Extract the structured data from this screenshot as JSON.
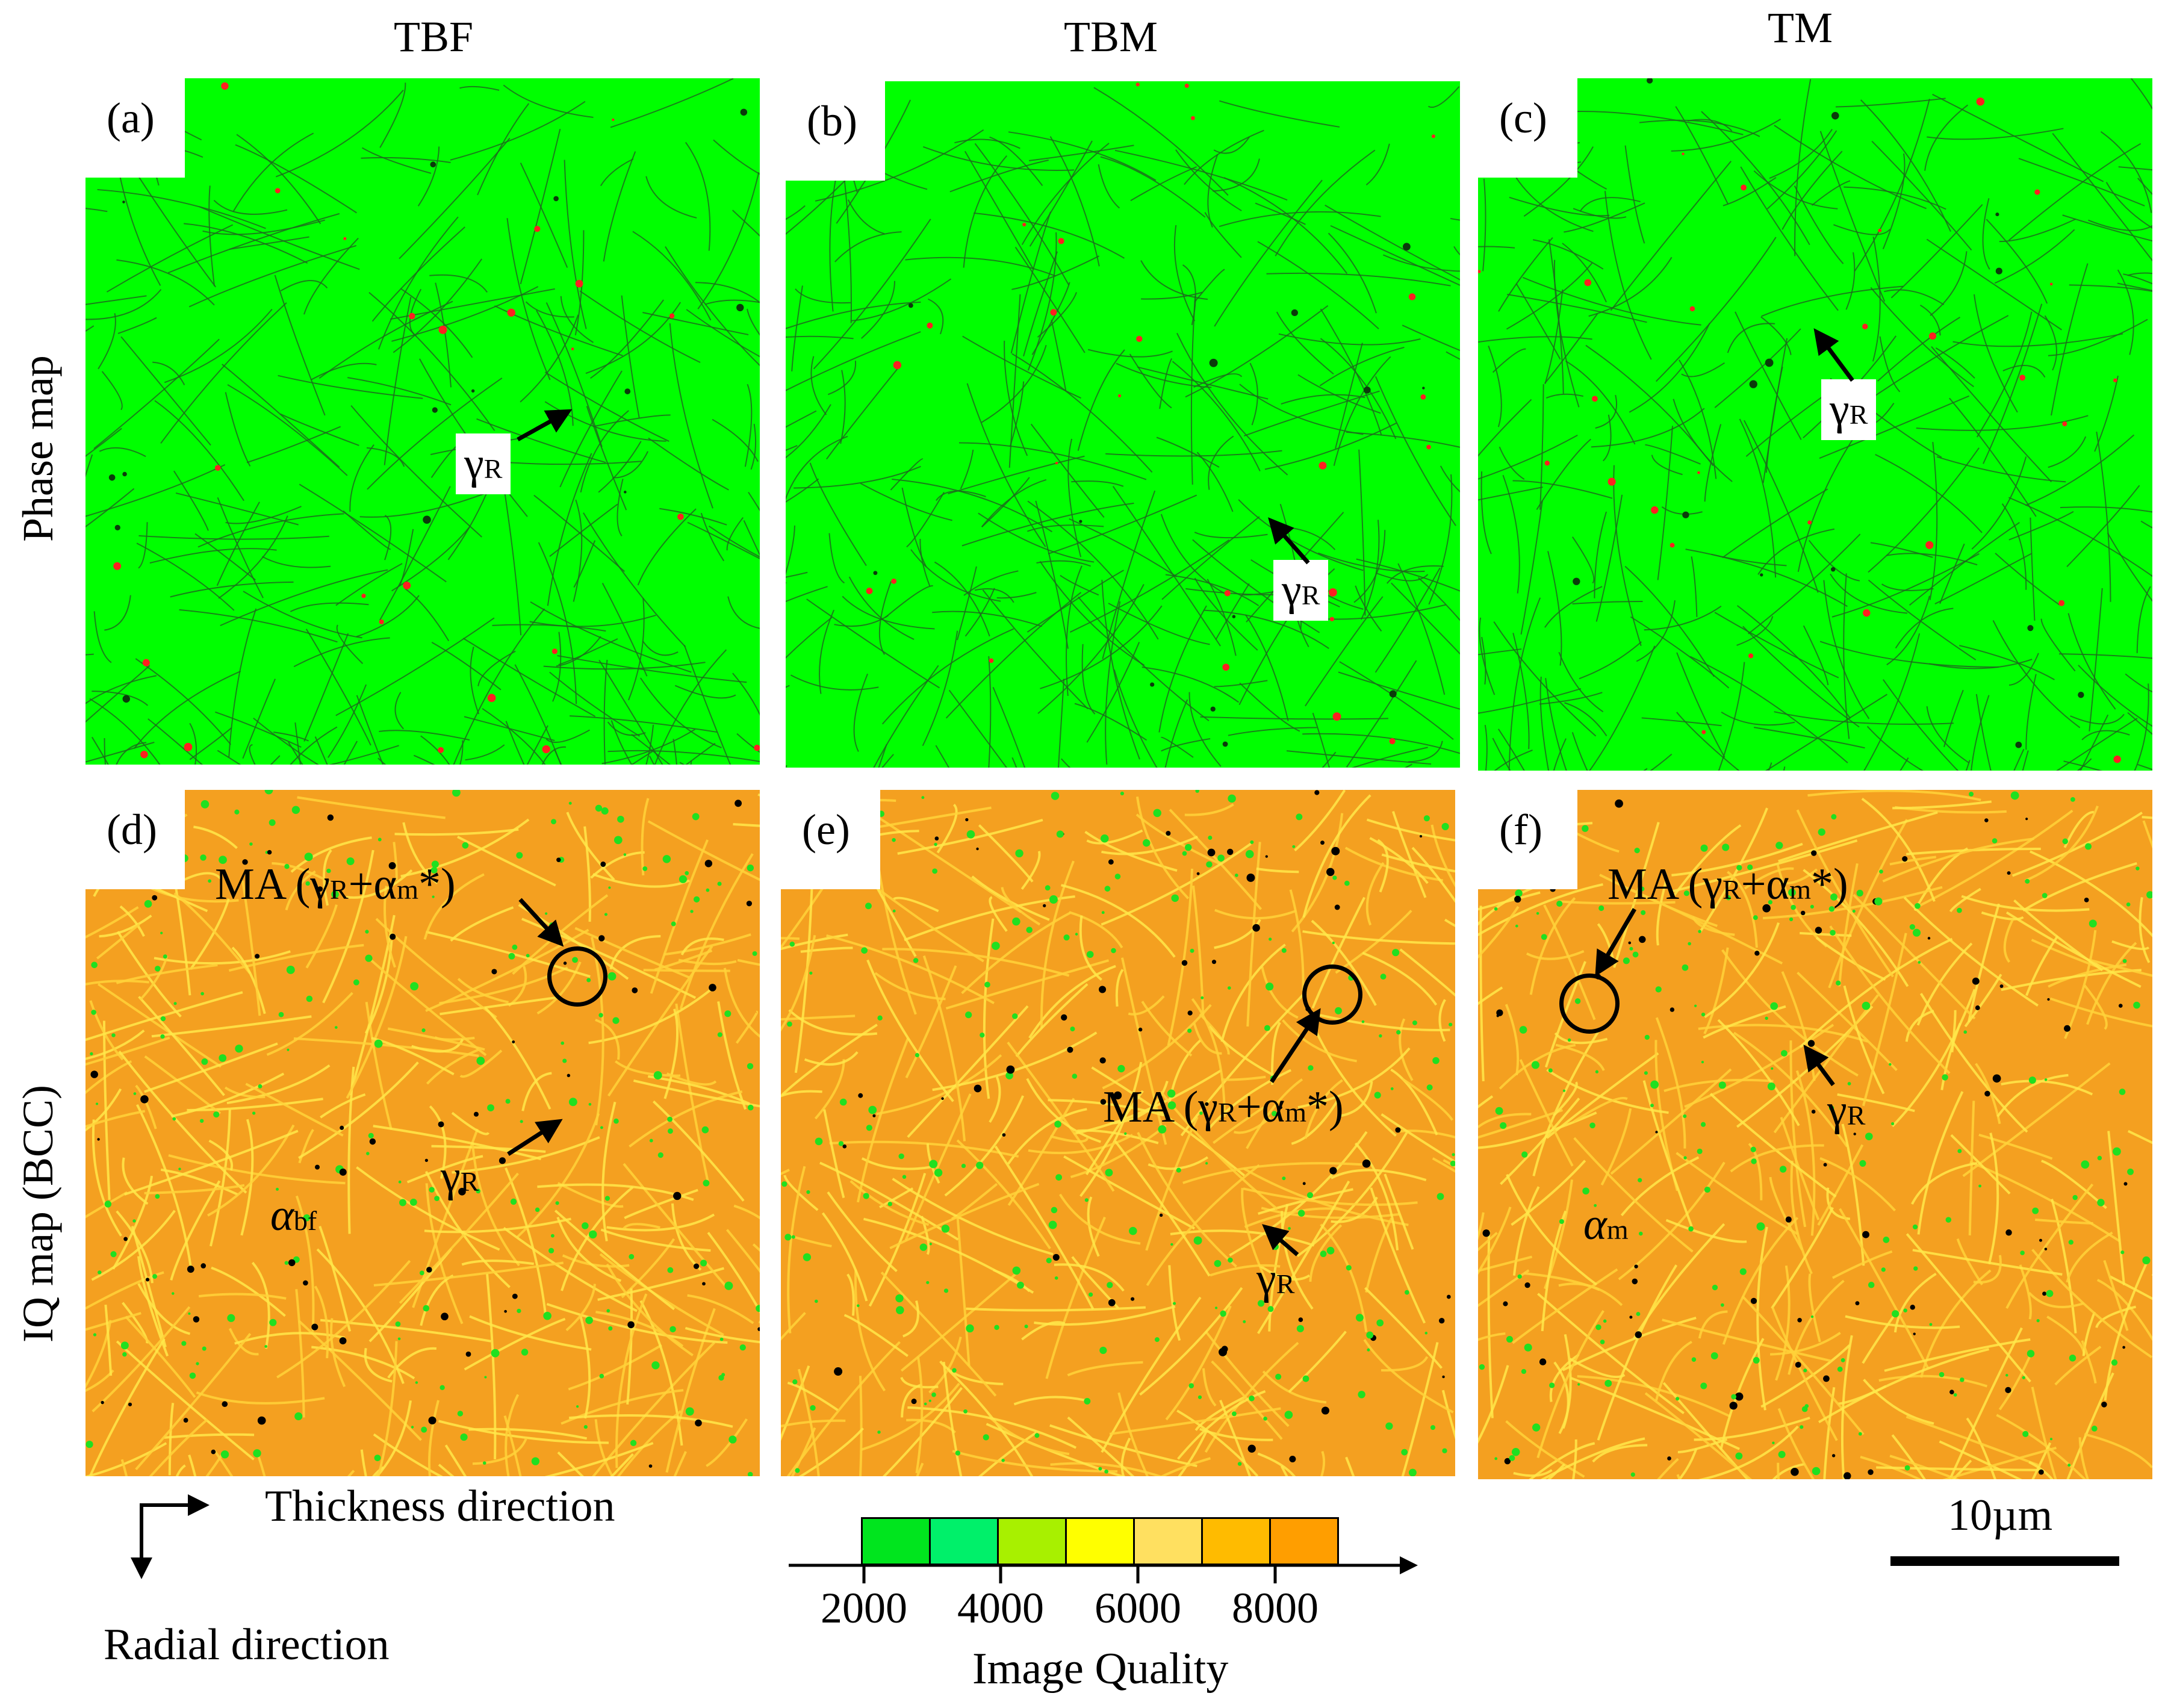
{
  "columns": [
    "TBF",
    "TBM",
    "TM"
  ],
  "rows": [
    "Phase map",
    "IQ map (BCC)"
  ],
  "panels": [
    {
      "label": "(a)",
      "map": "phase",
      "annotations": [
        {
          "text": "γ",
          "sub": "R"
        }
      ]
    },
    {
      "label": "(b)",
      "map": "phase",
      "annotations": [
        {
          "text": "γ",
          "sub": "R"
        }
      ]
    },
    {
      "label": "(c)",
      "map": "phase",
      "annotations": [
        {
          "text": "γ",
          "sub": "R"
        }
      ]
    },
    {
      "label": "(d)",
      "map": "iq",
      "annotations": [
        {
          "text": "MA (γ",
          "sub": "R",
          "text2": "+α",
          "sub2": "m",
          "text3": "*)"
        },
        {
          "text": "γ",
          "sub": "R"
        },
        {
          "text": "α",
          "sub": "bf"
        }
      ]
    },
    {
      "label": "(e)",
      "map": "iq",
      "annotations": [
        {
          "text": "MA (γ",
          "sub": "R",
          "text2": "+α",
          "sub2": "m",
          "text3": "*)"
        },
        {
          "text": "γ",
          "sub": "R"
        }
      ]
    },
    {
      "label": "(f)",
      "map": "iq",
      "annotations": [
        {
          "text": "MA (γ",
          "sub": "R",
          "text2": "+α",
          "sub2": "m",
          "text3": "*)"
        },
        {
          "text": "γ",
          "sub": "R"
        },
        {
          "text": "α",
          "sub": "m"
        }
      ]
    }
  ],
  "directions": {
    "horizontal": "Thickness direction",
    "vertical": "Radial direction"
  },
  "legend": {
    "title": "Image Quality",
    "ticks": [
      "2000",
      "4000",
      "6000",
      "8000"
    ],
    "colors": [
      "#00e51e",
      "#00f06a",
      "#a8f000",
      "#ffff00",
      "#ffe060",
      "#ffbb00",
      "#ff9e00"
    ]
  },
  "scale_bar": {
    "label": "10µm"
  },
  "colors": {
    "phase_bcc": "#00ff00",
    "phase_fcc": "#ff2020",
    "iq_high": "#f4a020",
    "iq_low": "#20e020"
  }
}
